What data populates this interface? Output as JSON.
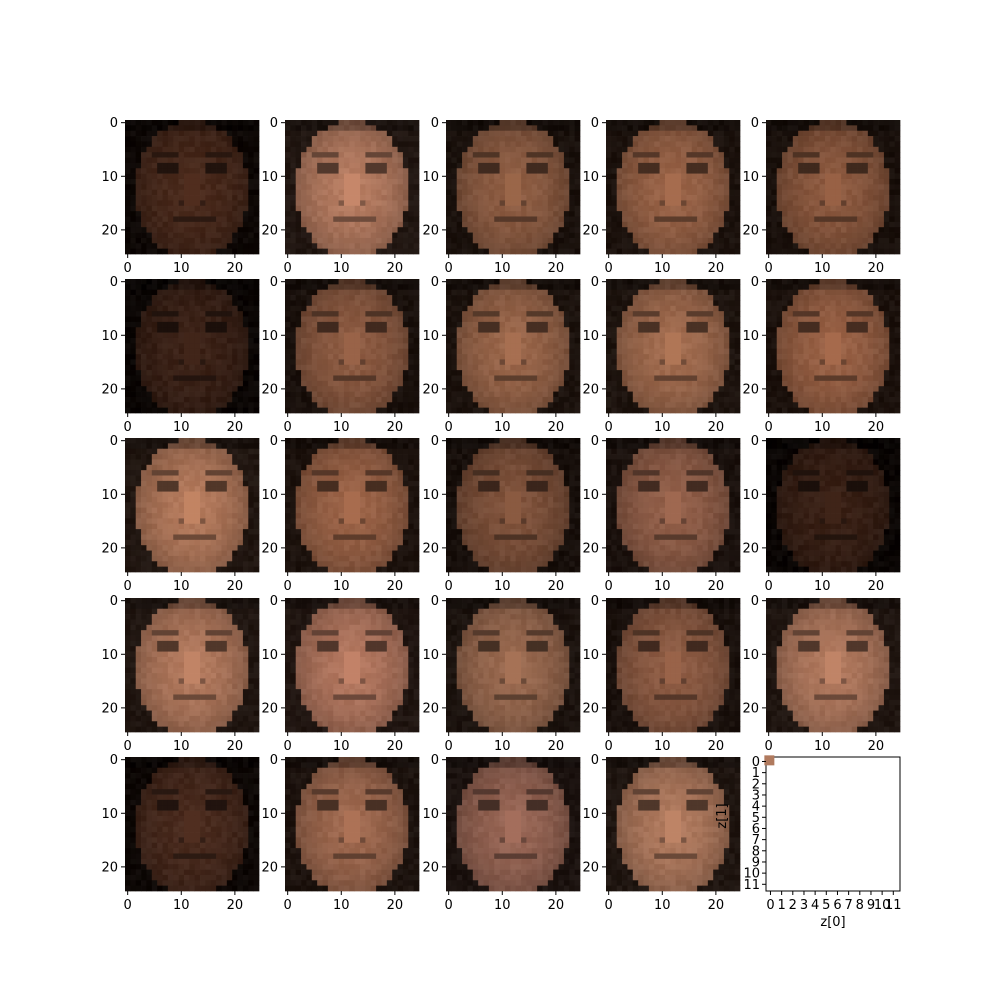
{
  "chart_data": {
    "type": "image-grid",
    "rows": 5,
    "cols": 5,
    "panels": [
      {
        "row": 0,
        "col": 0,
        "type": "image",
        "size": 25,
        "tone": "#4a2a1c",
        "xticks": [
          "0",
          "10",
          "20"
        ],
        "yticks": [
          "0",
          "10",
          "20"
        ]
      },
      {
        "row": 0,
        "col": 1,
        "type": "image",
        "size": 25,
        "tone": "#b77d62",
        "xticks": [
          "0",
          "10",
          "20"
        ],
        "yticks": [
          "0",
          "10",
          "20"
        ]
      },
      {
        "row": 0,
        "col": 2,
        "type": "image",
        "size": 25,
        "tone": "#8f5e44",
        "xticks": [
          "0",
          "10",
          "20"
        ],
        "yticks": [
          "0",
          "10",
          "20"
        ]
      },
      {
        "row": 0,
        "col": 3,
        "type": "image",
        "size": 25,
        "tone": "#9a6448",
        "xticks": [
          "0",
          "10",
          "20"
        ],
        "yticks": [
          "0",
          "10",
          "20"
        ]
      },
      {
        "row": 0,
        "col": 4,
        "type": "image",
        "size": 25,
        "tone": "#8d5a40",
        "xticks": [
          "0",
          "10",
          "20"
        ],
        "yticks": [
          "0",
          "10",
          "20"
        ]
      },
      {
        "row": 1,
        "col": 0,
        "type": "image",
        "size": 25,
        "tone": "#3c2217",
        "xticks": [
          "0",
          "10",
          "20"
        ],
        "yticks": [
          "0",
          "10",
          "20"
        ]
      },
      {
        "row": 1,
        "col": 1,
        "type": "image",
        "size": 25,
        "tone": "#8e5c43",
        "xticks": [
          "0",
          "10",
          "20"
        ],
        "yticks": [
          "0",
          "10",
          "20"
        ]
      },
      {
        "row": 1,
        "col": 2,
        "type": "image",
        "size": 25,
        "tone": "#9b674b",
        "xticks": [
          "0",
          "10",
          "20"
        ],
        "yticks": [
          "0",
          "10",
          "20"
        ]
      },
      {
        "row": 1,
        "col": 3,
        "type": "image",
        "size": 25,
        "tone": "#a36d50",
        "xticks": [
          "0",
          "10",
          "20"
        ],
        "yticks": [
          "0",
          "10",
          "20"
        ]
      },
      {
        "row": 1,
        "col": 4,
        "type": "image",
        "size": 25,
        "tone": "#9a6246",
        "xticks": [
          "0",
          "10",
          "20"
        ],
        "yticks": [
          "0",
          "10",
          "20"
        ]
      },
      {
        "row": 2,
        "col": 0,
        "type": "image",
        "size": 25,
        "tone": "#b47a5c",
        "xticks": [
          "0",
          "10",
          "20"
        ],
        "yticks": [
          "0",
          "10",
          "20"
        ]
      },
      {
        "row": 2,
        "col": 1,
        "type": "image",
        "size": 25,
        "tone": "#9c6448",
        "xticks": [
          "0",
          "10",
          "20"
        ],
        "yticks": [
          "0",
          "10",
          "20"
        ]
      },
      {
        "row": 2,
        "col": 2,
        "type": "image",
        "size": 25,
        "tone": "#80533c",
        "xticks": [
          "0",
          "10",
          "20"
        ],
        "yticks": [
          "0",
          "10",
          "20"
        ]
      },
      {
        "row": 2,
        "col": 3,
        "type": "image",
        "size": 25,
        "tone": "#93604a",
        "xticks": [
          "0",
          "10",
          "20"
        ],
        "yticks": [
          "0",
          "10",
          "20"
        ]
      },
      {
        "row": 2,
        "col": 4,
        "type": "image",
        "size": 25,
        "tone": "#3a2116",
        "xticks": [
          "0",
          "10",
          "20"
        ],
        "yticks": [
          "0",
          "10",
          "20"
        ]
      },
      {
        "row": 3,
        "col": 0,
        "type": "image",
        "size": 25,
        "tone": "#b37a5e",
        "xticks": [
          "0",
          "10",
          "20"
        ],
        "yticks": [
          "0",
          "10",
          "20"
        ]
      },
      {
        "row": 3,
        "col": 1,
        "type": "image",
        "size": 25,
        "tone": "#b47860",
        "xticks": [
          "0",
          "10",
          "20"
        ],
        "yticks": [
          "0",
          "10",
          "20"
        ]
      },
      {
        "row": 3,
        "col": 2,
        "type": "image",
        "size": 25,
        "tone": "#9a6a50",
        "xticks": [
          "0",
          "10",
          "20"
        ],
        "yticks": [
          "0",
          "10",
          "20"
        ]
      },
      {
        "row": 3,
        "col": 3,
        "type": "image",
        "size": 25,
        "tone": "#8e5c44",
        "xticks": [
          "0",
          "10",
          "20"
        ],
        "yticks": [
          "0",
          "10",
          "20"
        ]
      },
      {
        "row": 3,
        "col": 4,
        "type": "image",
        "size": 25,
        "tone": "#b27a5f",
        "xticks": [
          "0",
          "10",
          "20"
        ],
        "yticks": [
          "0",
          "10",
          "20"
        ]
      },
      {
        "row": 4,
        "col": 0,
        "type": "image",
        "size": 25,
        "tone": "#4a2b1e",
        "xticks": [
          "0",
          "10",
          "20"
        ],
        "yticks": [
          "0",
          "10",
          "20"
        ]
      },
      {
        "row": 4,
        "col": 1,
        "type": "image",
        "size": 25,
        "tone": "#a06a50",
        "xticks": [
          "0",
          "10",
          "20"
        ],
        "yticks": [
          "0",
          "10",
          "20"
        ]
      },
      {
        "row": 4,
        "col": 2,
        "type": "image",
        "size": 25,
        "tone": "#986655",
        "xticks": [
          "0",
          "10",
          "20"
        ],
        "yticks": [
          "0",
          "10",
          "20"
        ]
      },
      {
        "row": 4,
        "col": 3,
        "type": "image",
        "size": 25,
        "tone": "#b07a5e",
        "xticks": [
          "0",
          "10",
          "20"
        ],
        "yticks": [
          "0",
          "10",
          "20"
        ]
      },
      {
        "row": 4,
        "col": 4,
        "type": "latent-scatter",
        "xlabel": "z[0]",
        "ylabel": "z[1]",
        "xlim": [
          0,
          12
        ],
        "ylim": [
          0,
          12
        ],
        "xticks": [
          "0",
          "1",
          "2",
          "3",
          "4",
          "5",
          "6",
          "7",
          "8",
          "9",
          "10",
          "11"
        ],
        "yticks": [
          "0",
          "1",
          "2",
          "3",
          "4",
          "5",
          "6",
          "7",
          "8",
          "9",
          "10",
          "11"
        ],
        "points": [
          {
            "x": 0.3,
            "y": 0.3,
            "color": "#b07a5e"
          }
        ]
      }
    ]
  }
}
